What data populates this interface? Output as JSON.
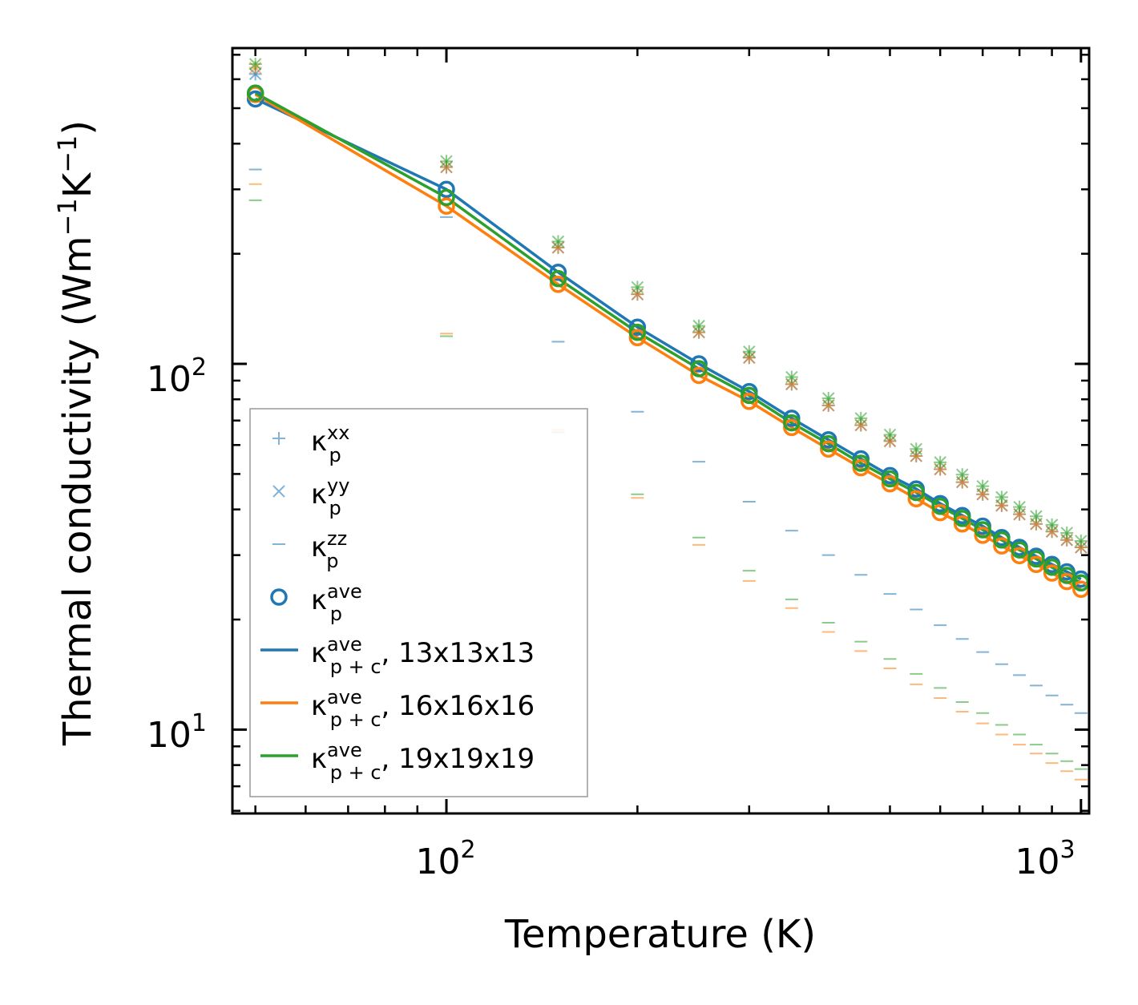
{
  "chart_data": {
    "type": "line",
    "xscale": "log",
    "yscale": "log",
    "xlim": [
      46,
      1030
    ],
    "ylim": [
      5.9,
      730
    ],
    "xlabel": "Temperature (K)",
    "ylabel": {
      "text": "Thermal conductivity (Wm",
      "exp1": "−1",
      "mid": "K",
      "exp2": "−1",
      "close": ")"
    },
    "x_ticks": [
      {
        "base": "10",
        "exp": "2"
      },
      {
        "base": "10",
        "exp": "3"
      }
    ],
    "y_ticks": [
      {
        "base": "10",
        "exp": "1"
      },
      {
        "base": "10",
        "exp": "2"
      }
    ],
    "colors": {
      "c13": "#1f77b4",
      "c16": "#ff7f0e",
      "c19": "#2ca02c"
    },
    "x": [
      50,
      100,
      150,
      200,
      250,
      300,
      350,
      400,
      450,
      500,
      550,
      600,
      650,
      700,
      750,
      800,
      850,
      900,
      950,
      1000
    ],
    "series": [
      {
        "name": "13x13x13",
        "color_key": "c13",
        "k_ave_p": [
          530,
          300,
          178,
          126,
          100,
          84,
          71,
          62,
          55,
          49.5,
          45.5,
          41.5,
          38.5,
          36,
          33.5,
          31.5,
          29.8,
          28.3,
          27,
          25.8
        ],
        "k_ave_pc": [
          530,
          300,
          178,
          126,
          100,
          84,
          71,
          62,
          55,
          49.5,
          45.5,
          41.5,
          38.5,
          36,
          33.5,
          31.5,
          29.8,
          28.3,
          27,
          25.8
        ],
        "k_xx": [
          620,
          345,
          208,
          155,
          122,
          104,
          88,
          77,
          68,
          61.5,
          56,
          51.5,
          47.5,
          44,
          41,
          38.8,
          36.5,
          34.8,
          33,
          31.5
        ],
        "k_yy": [
          620,
          345,
          208,
          155,
          122,
          104,
          88,
          77,
          68,
          61.5,
          56,
          51.5,
          47.5,
          44,
          41,
          38.8,
          36.5,
          34.8,
          33,
          31.5
        ],
        "k_zz": [
          340,
          252,
          115,
          74,
          54,
          42,
          35,
          30,
          26.5,
          23.5,
          21.3,
          19.3,
          17.7,
          16.3,
          15.1,
          14.1,
          13.2,
          12.4,
          11.7,
          11.1
        ]
      },
      {
        "name": "16x16x16",
        "color_key": "c16",
        "k_ave_p": [
          545,
          270,
          165,
          118,
          93,
          79,
          67,
          58.5,
          52,
          47,
          42.8,
          39.2,
          36.5,
          34,
          31.8,
          29.9,
          28.3,
          26.8,
          25.4,
          24.2
        ],
        "k_ave_pc": [
          545,
          270,
          165,
          118,
          93,
          79,
          67,
          58.5,
          52,
          47,
          42.8,
          39.2,
          36.5,
          34,
          31.8,
          29.9,
          28.3,
          26.8,
          25.4,
          24.2
        ],
        "k_xx": [
          645,
          345,
          208,
          155,
          122,
          104,
          88,
          77,
          68,
          61.5,
          56,
          51.5,
          47.5,
          44,
          41,
          38.8,
          36.5,
          34.8,
          33,
          31.5
        ],
        "k_yy": [
          645,
          345,
          208,
          155,
          122,
          104,
          88,
          77,
          68,
          61.5,
          56,
          51.5,
          47.5,
          44,
          41,
          38.8,
          36.5,
          34.8,
          33,
          31.5
        ],
        "k_zz": [
          310,
          121,
          66,
          43,
          32,
          25.5,
          21.5,
          18.5,
          16.4,
          14.7,
          13.3,
          12.2,
          11.2,
          10.4,
          9.7,
          9.1,
          8.6,
          8.1,
          7.7,
          7.3
        ]
      },
      {
        "name": "19x19x19",
        "color_key": "c19",
        "k_ave_p": [
          550,
          285,
          171,
          122,
          97,
          82,
          69,
          60.5,
          53.5,
          48.5,
          44.5,
          40.8,
          37.8,
          35.2,
          33,
          31,
          29.3,
          27.8,
          26.4,
          25.2
        ],
        "k_ave_pc": [
          550,
          285,
          171,
          122,
          97,
          82,
          69,
          60.5,
          53.5,
          48.5,
          44.5,
          40.8,
          37.8,
          35.2,
          33,
          31,
          29.3,
          27.8,
          26.4,
          25.2
        ],
        "k_xx": [
          660,
          358,
          216,
          162,
          127,
          108,
          92,
          80.5,
          71,
          64,
          58.5,
          53.8,
          49.8,
          46.3,
          43.2,
          40.6,
          38.3,
          36.3,
          34.5,
          32.8
        ],
        "k_yy": [
          660,
          358,
          216,
          162,
          127,
          108,
          92,
          80.5,
          71,
          64,
          58.5,
          53.8,
          49.8,
          46.3,
          43.2,
          40.6,
          38.3,
          36.3,
          34.5,
          32.8
        ],
        "k_zz": [
          280,
          119,
          65,
          44,
          33.5,
          27.2,
          22.7,
          19.6,
          17.4,
          15.6,
          14.2,
          13,
          11.9,
          11.1,
          10.3,
          9.7,
          9.1,
          8.6,
          8.2,
          7.8
        ]
      }
    ],
    "legend": {
      "position": "lower-left",
      "kappa": "κ",
      "p_sub": "p",
      "pc_sub": "p + c",
      "entries": [
        {
          "sup": "xx",
          "sub": "p",
          "label": "",
          "marker": "plus"
        },
        {
          "sup": "yy",
          "sub": "p",
          "label": "",
          "marker": "x"
        },
        {
          "sup": "zz",
          "sub": "p",
          "label": "",
          "marker": "dash"
        },
        {
          "sup": "ave",
          "sub": "p",
          "label": "",
          "marker": "circle"
        },
        {
          "sup": "ave",
          "sub": "p + c",
          "label": ", 13x13x13",
          "marker": "line",
          "color_key": "c13"
        },
        {
          "sup": "ave",
          "sub": "p + c",
          "label": ", 16x16x16",
          "marker": "line",
          "color_key": "c16"
        },
        {
          "sup": "ave",
          "sub": "p + c",
          "label": ", 19x19x19",
          "marker": "line",
          "color_key": "c19"
        }
      ]
    }
  }
}
